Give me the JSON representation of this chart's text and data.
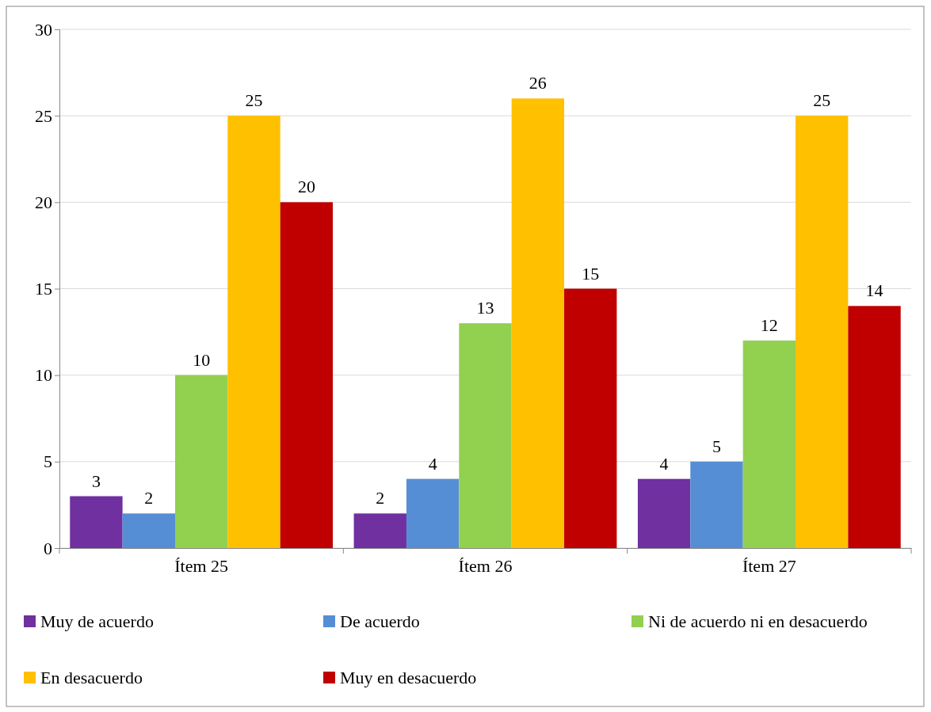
{
  "chart_data": {
    "type": "bar",
    "categories": [
      "Ítem 25",
      "Ítem 26",
      "Ítem 27"
    ],
    "series": [
      {
        "name": "Muy de acuerdo",
        "color": "#7030a0",
        "values": [
          3,
          2,
          4
        ]
      },
      {
        "name": "De acuerdo",
        "color": "#558ed5",
        "values": [
          2,
          4,
          5
        ]
      },
      {
        "name": "Ni de acuerdo ni en desacuerdo",
        "color": "#92d050",
        "values": [
          10,
          13,
          12
        ]
      },
      {
        "name": "En desacuerdo",
        "color": "#ffc000",
        "values": [
          25,
          26,
          25
        ]
      },
      {
        "name": "Muy en desacuerdo",
        "color": "#c00000",
        "values": [
          20,
          15,
          14
        ]
      }
    ],
    "ylim": [
      0,
      30
    ],
    "yticks": [
      0,
      5,
      10,
      15,
      20,
      25,
      30
    ],
    "grid": "y",
    "legend": "bottom",
    "data_labels": true
  }
}
